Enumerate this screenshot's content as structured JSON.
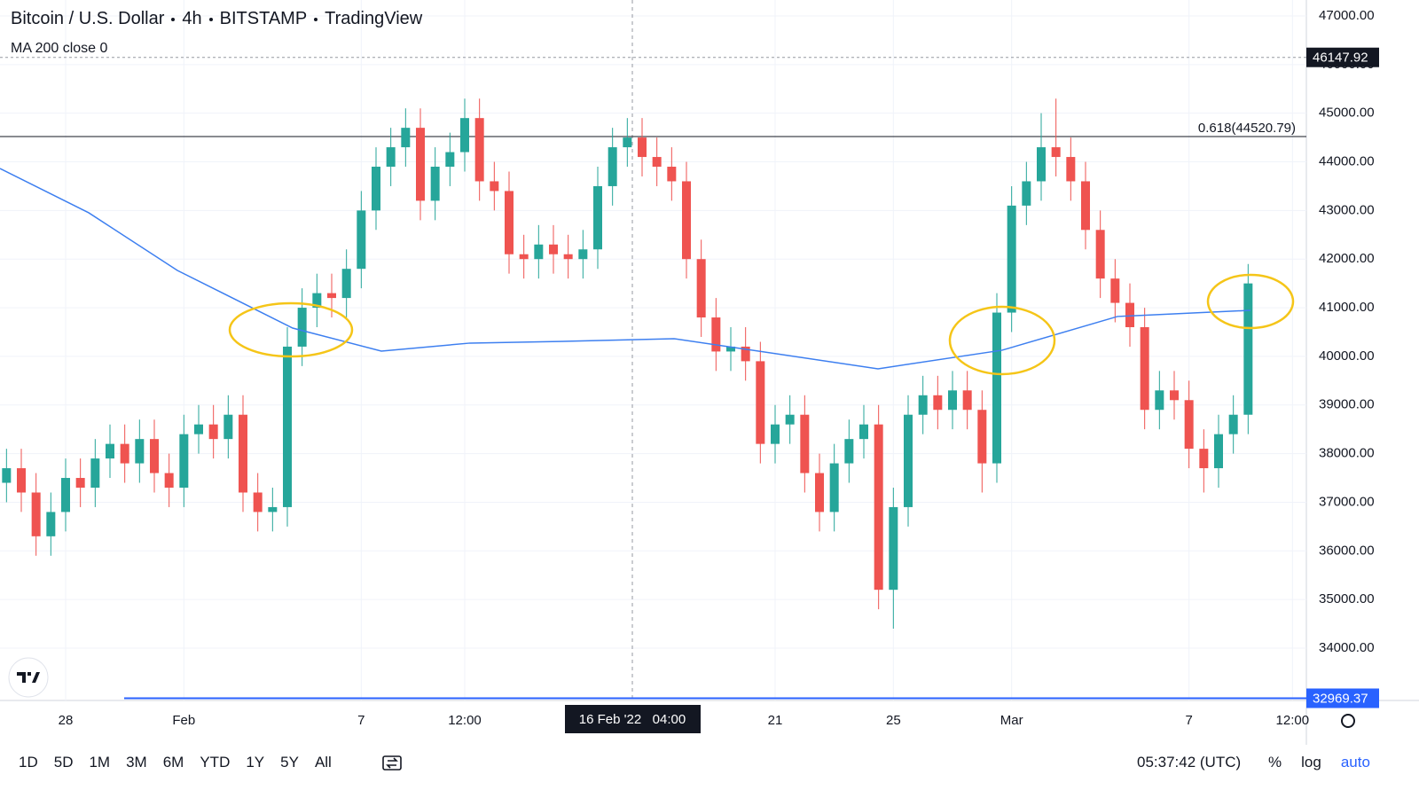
{
  "header": {
    "symbol": "Bitcoin / U.S. Dollar",
    "interval": "4h",
    "exchange": "BITSTAMP",
    "source": "TradingView"
  },
  "chart_data": {
    "type": "candlestick",
    "log": false,
    "grid": true,
    "up_color": "#26a69a",
    "down_color": "#ef5350",
    "xlim": [
      -0.22,
      43.97
    ],
    "ylim": [
      32924,
      47328
    ],
    "xticks": [
      {
        "value": 2,
        "label": "28"
      },
      {
        "value": 6,
        "label": "Feb"
      },
      {
        "value": 12,
        "label": "7"
      },
      {
        "value": 15.5,
        "label": "12:00"
      },
      {
        "value": 26,
        "label": "21"
      },
      {
        "value": 30,
        "label": "25"
      },
      {
        "value": 34,
        "label": "Mar"
      },
      {
        "value": 40,
        "label": "7"
      },
      {
        "value": 43.5,
        "label": "12:00"
      }
    ],
    "yticks": [
      {
        "value": 34000,
        "label": "34000.00"
      },
      {
        "value": 35000,
        "label": "35000.00"
      },
      {
        "value": 36000,
        "label": "36000.00"
      },
      {
        "value": 37000,
        "label": "37000.00"
      },
      {
        "value": 38000,
        "label": "38000.00"
      },
      {
        "value": 39000,
        "label": "39000.00"
      },
      {
        "value": 40000,
        "label": "40000.00"
      },
      {
        "value": 41000,
        "label": "41000.00"
      },
      {
        "value": 42000,
        "label": "42000.00"
      },
      {
        "value": 43000,
        "label": "43000.00"
      },
      {
        "value": 44000,
        "label": "44000.00"
      },
      {
        "value": 45000,
        "label": "45000.00"
      },
      {
        "value": 46000,
        "label": "46000.00"
      },
      {
        "value": 47000,
        "label": "47000.00"
      }
    ],
    "x": [
      0,
      0.5,
      1,
      1.5,
      2,
      2.5,
      3,
      3.5,
      4,
      4.5,
      5,
      5.5,
      6,
      6.5,
      7,
      7.5,
      8,
      8.5,
      9,
      9.5,
      10,
      10.5,
      11,
      11.5,
      12,
      12.5,
      13,
      13.5,
      14,
      14.5,
      15,
      15.5,
      16,
      16.5,
      17,
      17.5,
      18,
      18.5,
      19,
      19.5,
      20,
      20.5,
      21,
      21.5,
      22,
      22.5,
      23,
      23.5,
      24,
      24.5,
      25,
      25.5,
      26,
      26.5,
      27,
      27.5,
      28,
      28.5,
      29,
      29.5,
      30,
      30.5,
      31,
      31.5,
      32,
      32.5,
      33,
      33.5,
      34,
      34.5,
      35,
      35.5,
      36,
      36.5,
      37,
      37.5,
      38,
      38.5,
      39,
      39.5,
      40,
      40.5,
      41,
      41.5,
      42
    ],
    "open": [
      37400,
      37700,
      37200,
      36300,
      36800,
      37500,
      37300,
      37900,
      38200,
      37800,
      38300,
      37600,
      37300,
      38400,
      38600,
      38300,
      38800,
      37200,
      36800,
      36900,
      40200,
      41000,
      41300,
      41200,
      41800,
      43000,
      43900,
      44300,
      44700,
      43200,
      43900,
      44200,
      44900,
      43600,
      43400,
      42100,
      42000,
      42300,
      42100,
      42000,
      42200,
      43500,
      44300,
      44500,
      44100,
      43900,
      43600,
      42000,
      40800,
      40100,
      40200,
      39900,
      38200,
      38600,
      38800,
      37600,
      36800,
      37800,
      38300,
      38600,
      35200,
      36900,
      38800,
      39200,
      38900,
      39300,
      38900,
      37800,
      40900,
      43100,
      43600,
      44300,
      44100,
      43600,
      42600,
      41600,
      41100,
      40600,
      38900,
      39300,
      39100,
      38100,
      37700,
      38400,
      38800
    ],
    "high": [
      38100,
      38100,
      37600,
      37200,
      37900,
      37900,
      38300,
      38600,
      38600,
      38700,
      38700,
      38000,
      38800,
      39000,
      39000,
      39200,
      39200,
      37600,
      37300,
      40600,
      41400,
      41700,
      41700,
      42200,
      43400,
      44300,
      44700,
      45100,
      45100,
      44300,
      44600,
      45300,
      45300,
      44000,
      43800,
      42500,
      42700,
      42700,
      42500,
      42600,
      43900,
      44700,
      44900,
      44900,
      44500,
      44300,
      44000,
      42400,
      41200,
      40600,
      40600,
      40300,
      39000,
      39200,
      39200,
      38000,
      38200,
      38700,
      39000,
      39000,
      37300,
      39200,
      39600,
      39600,
      39700,
      39700,
      39300,
      41300,
      43500,
      44000,
      45000,
      45300,
      44500,
      44000,
      43000,
      42000,
      41500,
      41000,
      39700,
      39700,
      39500,
      38500,
      38800,
      39200,
      41900
    ],
    "low": [
      37000,
      36800,
      35900,
      35900,
      36400,
      36900,
      36900,
      37500,
      37400,
      37400,
      37200,
      36900,
      36900,
      38000,
      37900,
      37900,
      36800,
      36400,
      36400,
      36500,
      39800,
      40600,
      40800,
      40800,
      41400,
      42600,
      43500,
      43900,
      42800,
      42800,
      43500,
      43800,
      43200,
      43000,
      41700,
      41600,
      41600,
      41700,
      41600,
      41600,
      41800,
      43100,
      43900,
      43700,
      43500,
      43200,
      41600,
      40400,
      39700,
      39700,
      39500,
      37800,
      37800,
      38200,
      37200,
      36400,
      36400,
      37400,
      37900,
      34800,
      34400,
      36500,
      38400,
      38500,
      38500,
      38500,
      37200,
      37400,
      40500,
      42700,
      43200,
      43700,
      43200,
      42200,
      41200,
      40700,
      40200,
      38500,
      38500,
      38700,
      37700,
      37200,
      37300,
      38000,
      38400
    ],
    "close": [
      37700,
      37200,
      36300,
      36800,
      37500,
      37300,
      37900,
      38200,
      37800,
      38300,
      37600,
      37300,
      38400,
      38600,
      38300,
      38800,
      37200,
      36800,
      36900,
      40200,
      41000,
      41300,
      41200,
      41800,
      43000,
      43900,
      44300,
      44700,
      43200,
      43900,
      44200,
      44900,
      43600,
      43400,
      42100,
      42000,
      42300,
      42100,
      42000,
      42200,
      43500,
      44300,
      44500,
      44100,
      43900,
      43600,
      42000,
      40800,
      40100,
      40200,
      39900,
      38200,
      38600,
      38800,
      37600,
      36800,
      37800,
      38300,
      38600,
      35200,
      36900,
      38800,
      39200,
      38900,
      39300,
      38900,
      37800,
      40900,
      43100,
      43600,
      44300,
      44100,
      43600,
      42600,
      41600,
      41100,
      40600,
      38900,
      39300,
      39100,
      38100,
      37700,
      38400,
      38800,
      41500
    ],
    "ma": {
      "name": "MA 200 close 0",
      "color": "#3d7ff0",
      "x": [
        -0.22,
        2.78,
        5.78,
        9.68,
        12.68,
        15.68,
        18.98,
        22.58,
        29.48,
        33.68,
        37.58,
        42.08
      ],
      "values": [
        43864,
        42953,
        41767,
        40582,
        40108,
        40273,
        40310,
        40364,
        39744,
        40127,
        40820,
        40947
      ]
    },
    "fib_level": {
      "value": 44520.79,
      "label": "0.618(44520.79)"
    },
    "last_price": {
      "value": 46147.92,
      "label": "46147.92"
    },
    "low_price": {
      "value": 32969.37,
      "label": "32969.37"
    },
    "crosshair": {
      "value": 21.17,
      "label": "16 Feb '22   04:00"
    }
  },
  "toolbar": {
    "ranges": [
      "1D",
      "5D",
      "1M",
      "3M",
      "6M",
      "YTD",
      "1Y",
      "5Y",
      "All"
    ],
    "clock": "05:37:42 (UTC)",
    "options": [
      "%",
      "log",
      "auto"
    ]
  }
}
